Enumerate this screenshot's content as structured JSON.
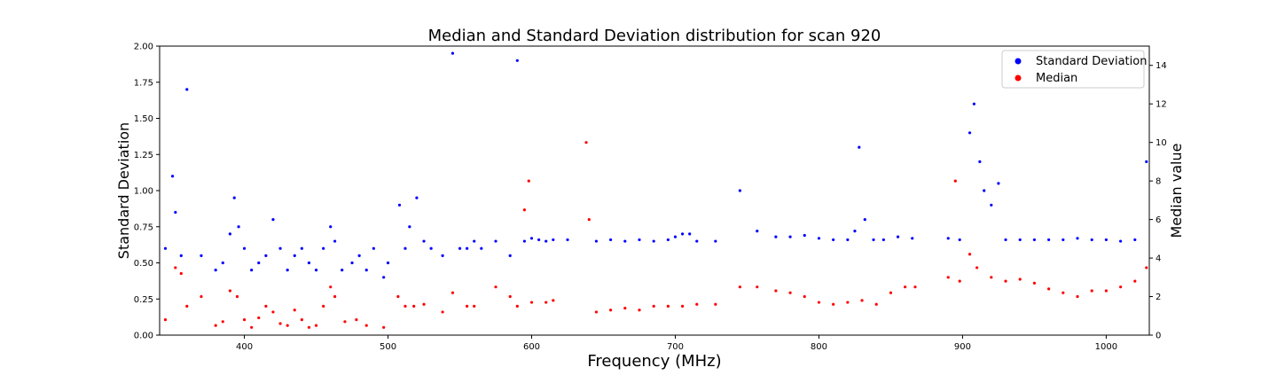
{
  "chart_data": {
    "type": "scatter",
    "title": "Median and Standard Deviation distribution for scan 920",
    "xlabel": "Frequency (MHz)",
    "ylabel_left": "Standard Deviation",
    "ylabel_right": "Median value",
    "xlim": [
      341,
      1030
    ],
    "ylim_left": [
      0,
      2.0
    ],
    "ylim_right": [
      0,
      15
    ],
    "x_ticks": [
      400,
      500,
      600,
      700,
      800,
      900,
      1000
    ],
    "x_tick_labels": [
      "400",
      "500",
      "600",
      "700",
      "800",
      "900",
      "1000"
    ],
    "y_left_ticks": [
      0,
      0.25,
      0.5,
      0.75,
      1.0,
      1.25,
      1.5,
      1.75,
      2.0
    ],
    "y_left_tick_labels": [
      "0.00",
      "0.25",
      "0.50",
      "0.75",
      "1.00",
      "1.25",
      "1.50",
      "1.75",
      "2.00"
    ],
    "y_right_ticks": [
      0,
      2,
      4,
      6,
      8,
      10,
      12,
      14
    ],
    "y_right_tick_labels": [
      "0",
      "2",
      "4",
      "6",
      "8",
      "10",
      "12",
      "14"
    ],
    "grid": false,
    "legend_position": "top-right",
    "series": [
      {
        "name": "Standard Deviation",
        "color": "#0000ff",
        "axis": "left",
        "points": [
          [
            345,
            0.6
          ],
          [
            350,
            1.1
          ],
          [
            352,
            0.85
          ],
          [
            356,
            0.55
          ],
          [
            360,
            1.7
          ],
          [
            370,
            0.55
          ],
          [
            380,
            0.45
          ],
          [
            385,
            0.5
          ],
          [
            390,
            0.7
          ],
          [
            393,
            0.95
          ],
          [
            396,
            0.75
          ],
          [
            400,
            0.6
          ],
          [
            405,
            0.45
          ],
          [
            410,
            0.5
          ],
          [
            415,
            0.55
          ],
          [
            420,
            0.8
          ],
          [
            425,
            0.6
          ],
          [
            430,
            0.45
          ],
          [
            435,
            0.55
          ],
          [
            440,
            0.6
          ],
          [
            445,
            0.5
          ],
          [
            450,
            0.45
          ],
          [
            455,
            0.6
          ],
          [
            460,
            0.75
          ],
          [
            463,
            0.65
          ],
          [
            468,
            0.45
          ],
          [
            475,
            0.5
          ],
          [
            480,
            0.55
          ],
          [
            485,
            0.45
          ],
          [
            490,
            0.6
          ],
          [
            497,
            0.4
          ],
          [
            500,
            0.5
          ],
          [
            508,
            0.9
          ],
          [
            512,
            0.6
          ],
          [
            515,
            0.75
          ],
          [
            520,
            0.95
          ],
          [
            525,
            0.65
          ],
          [
            530,
            0.6
          ],
          [
            538,
            0.55
          ],
          [
            545,
            1.95
          ],
          [
            550,
            0.6
          ],
          [
            555,
            0.6
          ],
          [
            560,
            0.65
          ],
          [
            565,
            0.6
          ],
          [
            575,
            0.65
          ],
          [
            585,
            0.55
          ],
          [
            590,
            1.9
          ],
          [
            595,
            0.65
          ],
          [
            600,
            0.67
          ],
          [
            605,
            0.66
          ],
          [
            610,
            0.65
          ],
          [
            615,
            0.66
          ],
          [
            625,
            0.66
          ],
          [
            645,
            0.65
          ],
          [
            655,
            0.66
          ],
          [
            665,
            0.65
          ],
          [
            675,
            0.66
          ],
          [
            685,
            0.65
          ],
          [
            695,
            0.66
          ],
          [
            700,
            0.68
          ],
          [
            705,
            0.7
          ],
          [
            710,
            0.7
          ],
          [
            715,
            0.65
          ],
          [
            728,
            0.65
          ],
          [
            745,
            1.0
          ],
          [
            757,
            0.72
          ],
          [
            770,
            0.68
          ],
          [
            780,
            0.68
          ],
          [
            790,
            0.69
          ],
          [
            800,
            0.67
          ],
          [
            810,
            0.66
          ],
          [
            820,
            0.66
          ],
          [
            825,
            0.72
          ],
          [
            828,
            1.3
          ],
          [
            832,
            0.8
          ],
          [
            838,
            0.66
          ],
          [
            845,
            0.66
          ],
          [
            855,
            0.68
          ],
          [
            865,
            0.67
          ],
          [
            890,
            0.67
          ],
          [
            898,
            0.66
          ],
          [
            905,
            1.4
          ],
          [
            908,
            1.6
          ],
          [
            912,
            1.2
          ],
          [
            915,
            1.0
          ],
          [
            920,
            0.9
          ],
          [
            925,
            1.05
          ],
          [
            930,
            0.66
          ],
          [
            940,
            0.66
          ],
          [
            950,
            0.66
          ],
          [
            960,
            0.66
          ],
          [
            970,
            0.66
          ],
          [
            980,
            0.67
          ],
          [
            990,
            0.66
          ],
          [
            1000,
            0.66
          ],
          [
            1010,
            0.65
          ],
          [
            1020,
            0.66
          ],
          [
            1028,
            1.2
          ]
        ]
      },
      {
        "name": "Median",
        "color": "#ff0000",
        "axis": "right",
        "points": [
          [
            345,
            0.8
          ],
          [
            352,
            3.5
          ],
          [
            356,
            3.2
          ],
          [
            360,
            1.5
          ],
          [
            370,
            2.0
          ],
          [
            380,
            0.5
          ],
          [
            385,
            0.7
          ],
          [
            390,
            2.3
          ],
          [
            395,
            2.0
          ],
          [
            400,
            0.8
          ],
          [
            405,
            0.4
          ],
          [
            410,
            0.9
          ],
          [
            415,
            1.5
          ],
          [
            420,
            1.2
          ],
          [
            425,
            0.6
          ],
          [
            430,
            0.5
          ],
          [
            435,
            1.3
          ],
          [
            440,
            0.8
          ],
          [
            445,
            0.4
          ],
          [
            450,
            0.5
          ],
          [
            455,
            1.5
          ],
          [
            460,
            2.5
          ],
          [
            463,
            2.0
          ],
          [
            470,
            0.7
          ],
          [
            478,
            0.8
          ],
          [
            485,
            0.5
          ],
          [
            497,
            0.4
          ],
          [
            507,
            2.0
          ],
          [
            512,
            1.5
          ],
          [
            518,
            1.5
          ],
          [
            525,
            1.6
          ],
          [
            538,
            1.2
          ],
          [
            545,
            2.2
          ],
          [
            555,
            1.5
          ],
          [
            560,
            1.5
          ],
          [
            575,
            2.5
          ],
          [
            585,
            2.0
          ],
          [
            590,
            1.5
          ],
          [
            595,
            6.5
          ],
          [
            598,
            8.0
          ],
          [
            600,
            1.7
          ],
          [
            610,
            1.7
          ],
          [
            615,
            1.8
          ],
          [
            638,
            10.0
          ],
          [
            640,
            6.0
          ],
          [
            645,
            1.2
          ],
          [
            655,
            1.3
          ],
          [
            665,
            1.4
          ],
          [
            675,
            1.3
          ],
          [
            685,
            1.5
          ],
          [
            695,
            1.5
          ],
          [
            705,
            1.5
          ],
          [
            715,
            1.6
          ],
          [
            728,
            1.6
          ],
          [
            745,
            2.5
          ],
          [
            757,
            2.5
          ],
          [
            770,
            2.3
          ],
          [
            780,
            2.2
          ],
          [
            790,
            2.0
          ],
          [
            800,
            1.7
          ],
          [
            810,
            1.6
          ],
          [
            820,
            1.7
          ],
          [
            830,
            1.8
          ],
          [
            840,
            1.6
          ],
          [
            850,
            2.2
          ],
          [
            860,
            2.5
          ],
          [
            867,
            2.5
          ],
          [
            890,
            3.0
          ],
          [
            895,
            8.0
          ],
          [
            898,
            2.8
          ],
          [
            905,
            4.2
          ],
          [
            910,
            3.5
          ],
          [
            920,
            3.0
          ],
          [
            930,
            2.8
          ],
          [
            940,
            2.9
          ],
          [
            950,
            2.7
          ],
          [
            960,
            2.4
          ],
          [
            970,
            2.2
          ],
          [
            980,
            2.0
          ],
          [
            990,
            2.3
          ],
          [
            1000,
            2.3
          ],
          [
            1010,
            2.5
          ],
          [
            1020,
            2.8
          ],
          [
            1028,
            3.5
          ]
        ]
      }
    ]
  }
}
